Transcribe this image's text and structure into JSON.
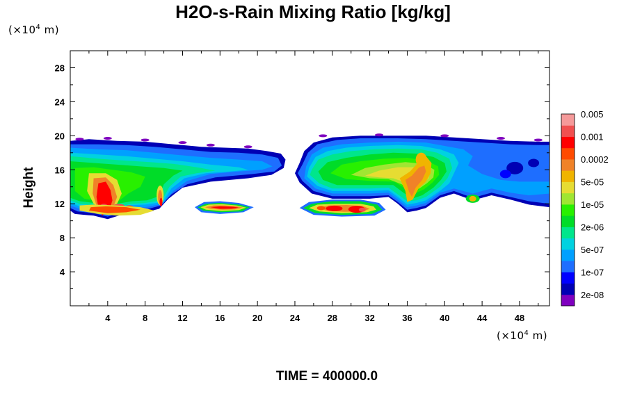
{
  "header": {
    "title": "H2O-s-Rain Mixing Ratio [kg/kg]"
  },
  "axes": {
    "y_unit_prefix": "(×10",
    "y_unit_exp": "4",
    "y_unit_suffix": " m)",
    "x_unit_prefix": "(×10",
    "x_unit_exp": "4",
    "x_unit_suffix": " m)",
    "ylabel": "Height"
  },
  "footer": {
    "time_label": "TIME = 400000.0"
  },
  "chart_data": {
    "type": "heatmap",
    "title": "H2O-s-Rain Mixing Ratio [kg/kg]",
    "xlabel": "",
    "ylabel": "Height",
    "x_unit": "(×10^4 m)",
    "y_unit": "(×10^4 m)",
    "xlim": [
      0,
      51.2
    ],
    "ylim": [
      0,
      30
    ],
    "x_ticks": [
      4,
      8,
      12,
      16,
      20,
      24,
      28,
      32,
      36,
      40,
      44,
      48
    ],
    "y_ticks": [
      4,
      8,
      12,
      16,
      20,
      24,
      28
    ],
    "legend": {
      "placement": "right",
      "colors": [
        "#7f00bf",
        "#0000b4",
        "#0000ff",
        "#1e6eff",
        "#00a0ff",
        "#00d2e0",
        "#00e68c",
        "#00dc28",
        "#28f000",
        "#a0e632",
        "#e6dc32",
        "#f0b400",
        "#f08228",
        "#ff4b00",
        "#ff0000",
        "#f05050",
        "#f59a9a"
      ],
      "labels": [
        "2e-08",
        "1e-07",
        "5e-07",
        "2e-06",
        "1e-05",
        "5e-05",
        "0.0002",
        "0.001",
        "0.005"
      ]
    },
    "regions": [
      {
        "name": "left cloud layer",
        "x_range": [
          0,
          23
        ],
        "y_range": [
          10,
          20
        ],
        "peak": "0.005"
      },
      {
        "name": "right cloud layer",
        "x_range": [
          24.5,
          51.2
        ],
        "y_range": [
          11,
          20
        ],
        "peak": "0.001"
      },
      {
        "name": "lower band 1",
        "x_range": [
          13.5,
          19.5
        ],
        "y_range": [
          10.8,
          12.2
        ],
        "peak": "0.005"
      },
      {
        "name": "lower band 2",
        "x_range": [
          24.5,
          33.5
        ],
        "y_range": [
          10.5,
          12.5
        ],
        "peak": "0.005"
      }
    ]
  }
}
